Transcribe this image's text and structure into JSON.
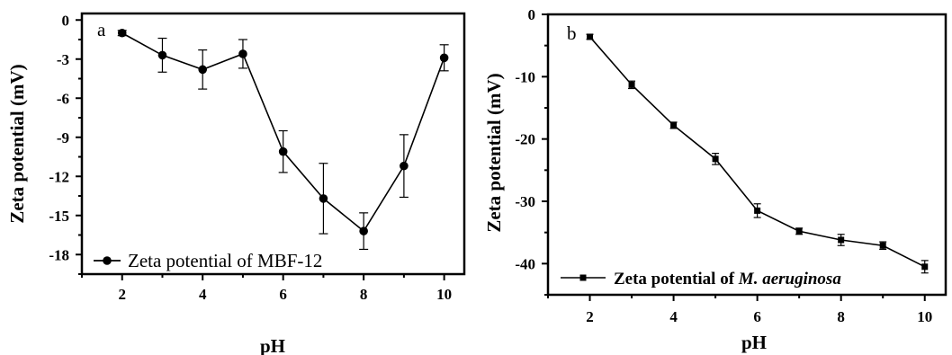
{
  "chart_data": [
    {
      "type": "line",
      "panel_label": "a",
      "xlabel": "pH",
      "ylabel": "Zeta potential (mV)",
      "xlim": [
        1,
        10.5
      ],
      "ylim": [
        -19.5,
        0.5
      ],
      "xticks": [
        2,
        4,
        6,
        8,
        10
      ],
      "yticks": [
        0,
        -3,
        -6,
        -9,
        -12,
        -15,
        -18
      ],
      "ytick_labels": [
        "0",
        "-3",
        "-6",
        "-9",
        "-12",
        "-15",
        "-18"
      ],
      "marker": "circle",
      "legend_placement": "bottom-left",
      "series": [
        {
          "name": "Zeta potential of MBF-12",
          "x": [
            2,
            3,
            4,
            5,
            6,
            7,
            8,
            9,
            10
          ],
          "y": [
            -1.0,
            -2.7,
            -3.8,
            -2.6,
            -10.1,
            -13.7,
            -16.2,
            -11.2,
            -2.9
          ],
          "error": [
            0.2,
            1.3,
            1.5,
            1.1,
            1.6,
            2.7,
            1.4,
            2.4,
            1.0
          ]
        }
      ]
    },
    {
      "type": "line",
      "panel_label": "b",
      "xlabel": "pH",
      "ylabel": "Zeta potential (mV)",
      "xlim": [
        1,
        10.5
      ],
      "ylim": [
        -45,
        0
      ],
      "xticks": [
        2,
        4,
        6,
        8,
        10
      ],
      "yticks": [
        0,
        -10,
        -20,
        -30,
        -40
      ],
      "ytick_labels": [
        "0",
        "-10",
        "-20",
        "-30",
        "-40"
      ],
      "marker": "square",
      "legend_placement": "bottom-left",
      "series": [
        {
          "name": "Zeta potential of ",
          "name_italic": "M. aeruginosa",
          "x": [
            2,
            3,
            4,
            5,
            6,
            7,
            8,
            9,
            10
          ],
          "y": [
            -3.6,
            -11.3,
            -17.8,
            -23.2,
            -31.5,
            -34.8,
            -36.2,
            -37.1,
            -40.5
          ],
          "error": [
            0.4,
            0.6,
            0.5,
            0.9,
            1.1,
            0.5,
            0.9,
            0.6,
            1.0
          ]
        }
      ]
    }
  ]
}
